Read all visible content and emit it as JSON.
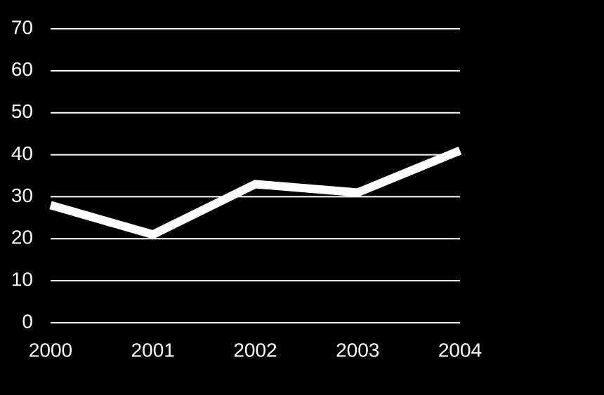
{
  "chart_data": {
    "type": "line",
    "x": [
      2000,
      2001,
      2002,
      2003,
      2004
    ],
    "series": [
      {
        "color": "#ffffff",
        "values": [
          28,
          21,
          33,
          31,
          41
        ]
      }
    ],
    "xlim": [
      2000,
      2004
    ],
    "xticks": [
      2000,
      2001,
      2002,
      2003,
      2004
    ],
    "ylim": [
      0,
      70
    ],
    "yticks": [
      0,
      10,
      20,
      30,
      40,
      50,
      60,
      70
    ],
    "grid": true,
    "background": "#000000",
    "grid_color": "#ffffff"
  }
}
